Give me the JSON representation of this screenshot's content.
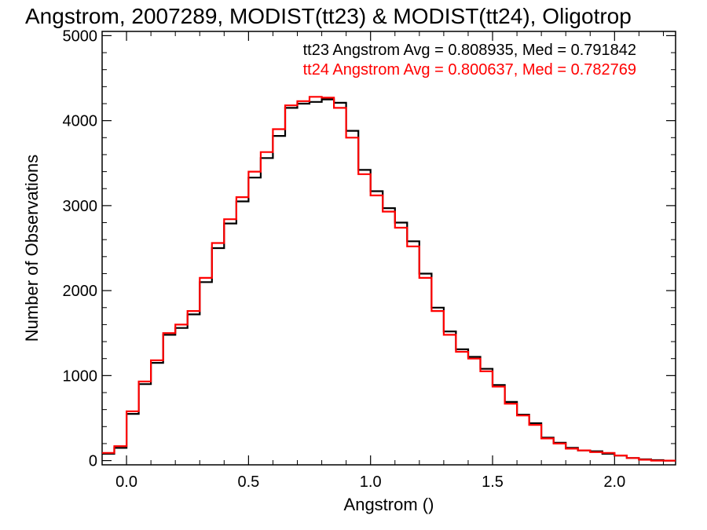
{
  "chart_data": {
    "type": "line",
    "step": true,
    "title": "Angstrom, 2007289, MODIST(tt23) & MODIST(tt24), Oligotrop",
    "xlabel": "Angstrom ()",
    "ylabel": "Number of Observations",
    "xlim": [
      -0.1,
      2.25
    ],
    "ylim": [
      -50,
      5050
    ],
    "xticks": [
      0.0,
      0.5,
      1.0,
      1.5,
      2.0
    ],
    "xtick_labels": [
      "0.0",
      "0.5",
      "1.0",
      "1.5",
      "2.0"
    ],
    "yticks": [
      0,
      1000,
      2000,
      3000,
      4000,
      5000
    ],
    "ytick_labels": [
      "0",
      "1000",
      "2000",
      "3000",
      "4000",
      "5000"
    ],
    "grid": false,
    "legend": "top-right",
    "annotations": [
      "tt23 Angstrom Avg = 0.808935, Med = 0.791842",
      "tt24 Angstrom Avg = 0.800637, Med = 0.782769"
    ],
    "series": [
      {
        "name": "tt23",
        "color": "#000000",
        "x": [
          -0.1,
          -0.05,
          0.0,
          0.05,
          0.1,
          0.15,
          0.2,
          0.25,
          0.3,
          0.35,
          0.4,
          0.45,
          0.5,
          0.55,
          0.6,
          0.65,
          0.7,
          0.75,
          0.8,
          0.85,
          0.9,
          0.95,
          1.0,
          1.05,
          1.1,
          1.15,
          1.2,
          1.25,
          1.3,
          1.35,
          1.4,
          1.45,
          1.5,
          1.55,
          1.6,
          1.65,
          1.7,
          1.75,
          1.8,
          1.85,
          1.9,
          1.95,
          2.0,
          2.05,
          2.1,
          2.15,
          2.2,
          2.25
        ],
        "values": [
          80,
          150,
          550,
          900,
          1150,
          1480,
          1560,
          1720,
          2100,
          2500,
          2790,
          3050,
          3330,
          3560,
          3820,
          4150,
          4200,
          4220,
          4250,
          4210,
          3880,
          3420,
          3170,
          2970,
          2800,
          2580,
          2200,
          1800,
          1520,
          1310,
          1220,
          1080,
          890,
          690,
          540,
          440,
          270,
          210,
          150,
          120,
          110,
          80,
          60,
          30,
          15,
          5,
          0,
          0
        ]
      },
      {
        "name": "tt24",
        "color": "#ff0000",
        "x": [
          -0.1,
          -0.05,
          0.0,
          0.05,
          0.1,
          0.15,
          0.2,
          0.25,
          0.3,
          0.35,
          0.4,
          0.45,
          0.5,
          0.55,
          0.6,
          0.65,
          0.7,
          0.75,
          0.8,
          0.85,
          0.9,
          0.95,
          1.0,
          1.05,
          1.1,
          1.15,
          1.2,
          1.25,
          1.3,
          1.35,
          1.4,
          1.45,
          1.5,
          1.55,
          1.6,
          1.65,
          1.7,
          1.75,
          1.8,
          1.85,
          1.9,
          1.95,
          2.0,
          2.05,
          2.1,
          2.15,
          2.2,
          2.25
        ],
        "values": [
          90,
          170,
          580,
          930,
          1180,
          1500,
          1600,
          1760,
          2150,
          2560,
          2840,
          3100,
          3400,
          3630,
          3900,
          4180,
          4230,
          4280,
          4270,
          4150,
          3800,
          3370,
          3120,
          2930,
          2740,
          2520,
          2150,
          1760,
          1480,
          1280,
          1200,
          1050,
          870,
          670,
          530,
          420,
          260,
          200,
          140,
          120,
          100,
          90,
          60,
          30,
          10,
          0,
          0,
          0
        ]
      }
    ]
  }
}
